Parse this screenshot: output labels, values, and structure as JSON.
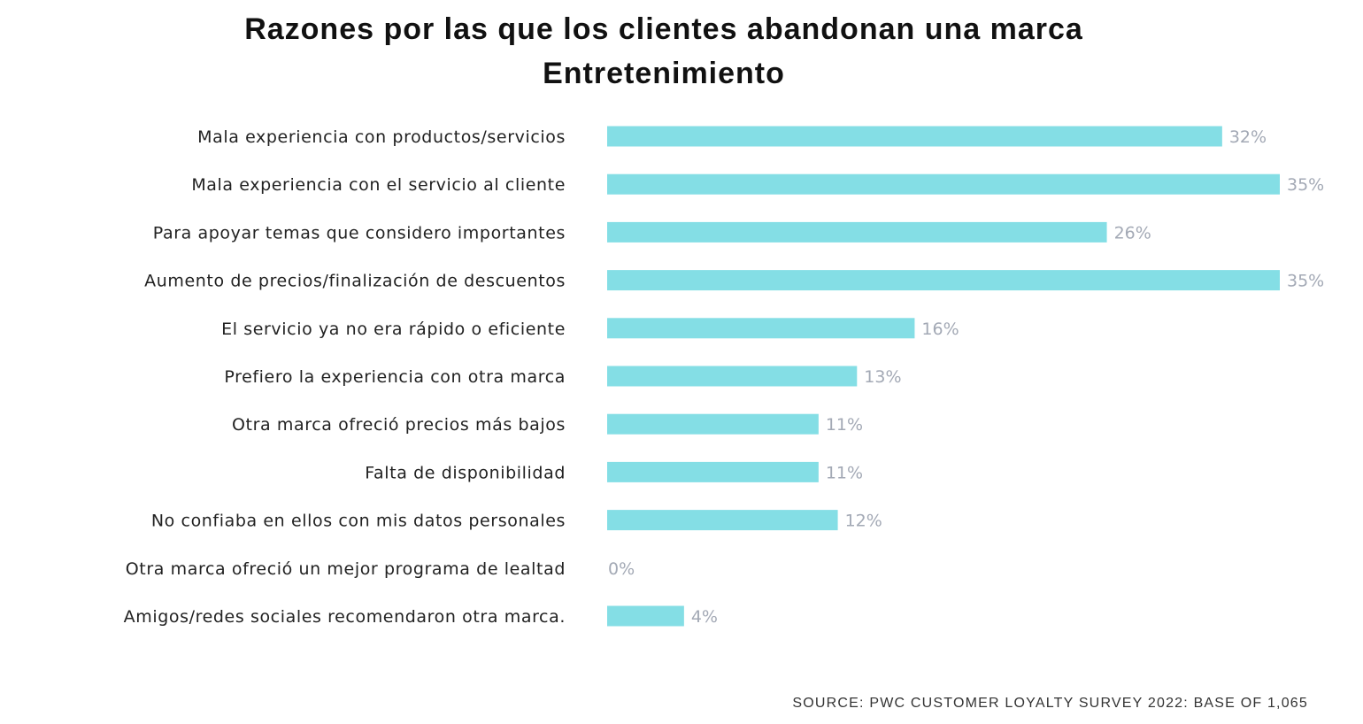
{
  "chart_data": {
    "type": "bar",
    "orientation": "horizontal",
    "title": "Razones por las que los clientes abandonan una marca",
    "subtitle": "Entretenimiento",
    "xlabel": "",
    "ylabel": "",
    "unit": "%",
    "xlim": [
      0,
      35
    ],
    "grid": false,
    "bar_color": "#84dee5",
    "value_label_color": "#a3a9b5",
    "categories": [
      "Mala experiencia con productos/servicios",
      "Mala experiencia con el servicio al cliente",
      "Para apoyar temas que considero importantes",
      "Aumento de precios/finalización de descuentos",
      "El servicio ya no era rápido o eficiente",
      "Prefiero la experiencia con otra marca",
      "Otra marca ofreció precios más bajos",
      "Falta de disponibilidad",
      "No confiaba en ellos con mis datos personales",
      "Otra marca ofreció un mejor programa de lealtad",
      "Amigos/redes sociales recomendaron otra marca."
    ],
    "values": [
      32,
      35,
      26,
      35,
      16,
      13,
      11,
      11,
      12,
      0,
      4
    ],
    "value_labels": [
      "32%",
      "35%",
      "26%",
      "35%",
      "16%",
      "13%",
      "11%",
      "11%",
      "12%",
      "0%",
      "4%"
    ],
    "source": "SOURCE: PWC CUSTOMER LOYALTY SURVEY 2022: BASE OF 1,065"
  }
}
